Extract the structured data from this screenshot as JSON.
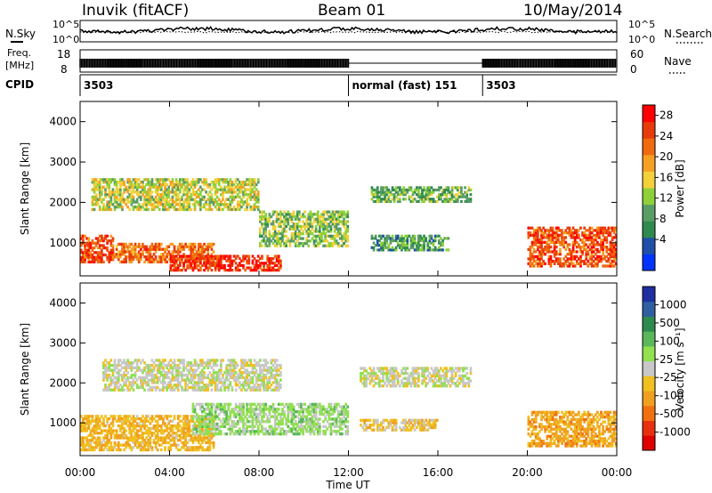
{
  "header": {
    "station": "Inuvik (fitACF)",
    "beam": "Beam 01",
    "date": "10/May/2014"
  },
  "top_panels": {
    "nsky_label": "N.Sky",
    "nsearch_label": "N.Search",
    "noise_ticks_left": [
      "10^5",
      "10^0"
    ],
    "noise_ticks_right": [
      "10^5",
      "10^0"
    ],
    "freq_label_line1": "Freq.",
    "freq_label_line2": "[MHz]",
    "freq_ticks": [
      "18",
      "8"
    ],
    "nave_label": "Nave",
    "nave_ticks": [
      "60",
      "0"
    ],
    "cpid_label": "CPID",
    "cpid_segments": [
      {
        "start_hour": 0,
        "end_hour": 12,
        "label": "3503"
      },
      {
        "start_hour": 12,
        "end_hour": 18,
        "label": "normal (fast) 151"
      },
      {
        "start_hour": 18,
        "end_hour": 24,
        "label": "3503"
      }
    ]
  },
  "colors": {
    "noise_trace": "#000000"
  },
  "chart_data": [
    {
      "type": "heatmap",
      "title": "",
      "ylabel": "Slant Range [km]",
      "xlabel": "",
      "x_range_hours": [
        0,
        24
      ],
      "ylim": [
        180,
        4500
      ],
      "y_ticks": [
        1000,
        2000,
        3000,
        4000
      ],
      "x_tick_hours": [
        0,
        4,
        8,
        12,
        16,
        20,
        24
      ],
      "x_tick_labels": [
        "00:00",
        "04:00",
        "08:00",
        "12:00",
        "16:00",
        "20:00",
        "00:00"
      ],
      "colorbar_label": "Power [dB]",
      "colorbar_ticks": [
        "4",
        "8",
        "12",
        "16",
        "20",
        "24",
        "28"
      ],
      "colorbar_colors": [
        "#0033ff",
        "#1f4fa8",
        "#2f8a4f",
        "#5a9c66",
        "#8fd03a",
        "#f2d13a",
        "#f6a023",
        "#f06a10",
        "#e83b0c",
        "#ff0000"
      ],
      "echo_regions": [
        {
          "t0": 0.0,
          "t1": 1.5,
          "r0": 500,
          "r1": 1200,
          "dB": 26
        },
        {
          "t0": 1.5,
          "t1": 6.0,
          "r0": 500,
          "r1": 1000,
          "dB": 24
        },
        {
          "t0": 4.0,
          "t1": 9.0,
          "r0": 300,
          "r1": 700,
          "dB": 28
        },
        {
          "t0": 0.5,
          "t1": 8.0,
          "r0": 1800,
          "r1": 2600,
          "dB": 16
        },
        {
          "t0": 8.0,
          "t1": 12.0,
          "r0": 900,
          "r1": 1800,
          "dB": 14
        },
        {
          "t0": 13.0,
          "t1": 17.5,
          "r0": 2000,
          "r1": 2400,
          "dB": 12
        },
        {
          "t0": 13.0,
          "t1": 16.5,
          "r0": 800,
          "r1": 1200,
          "dB": 10
        },
        {
          "t0": 20.0,
          "t1": 24.0,
          "r0": 400,
          "r1": 1400,
          "dB": 26
        }
      ]
    },
    {
      "type": "heatmap",
      "title": "",
      "ylabel": "Slant Range [km]",
      "xlabel": "Time UT",
      "x_range_hours": [
        0,
        24
      ],
      "ylim": [
        180,
        4500
      ],
      "y_ticks": [
        1000,
        2000,
        3000,
        4000
      ],
      "x_tick_hours": [
        0,
        4,
        8,
        12,
        16,
        20,
        24
      ],
      "x_tick_labels": [
        "00:00",
        "04:00",
        "08:00",
        "12:00",
        "16:00",
        "20:00",
        "00:00"
      ],
      "colorbar_label": "Velocity [m s⁻¹]",
      "colorbar_ticks": [
        "1000",
        "500",
        "100",
        "25",
        "-25",
        "-100",
        "-500",
        "-1000"
      ],
      "colorbar_colors": [
        "#1f2fa0",
        "#2f5fa0",
        "#2f8a4f",
        "#5ab85a",
        "#90e050",
        "#c8c8c8",
        "#f0c020",
        "#f0a020",
        "#f07010",
        "#e83010",
        "#e00000"
      ],
      "echo_regions": [
        {
          "t0": 0.0,
          "t1": 6.0,
          "r0": 300,
          "r1": 1200,
          "v": -300
        },
        {
          "t0": 5.0,
          "t1": 12.0,
          "r0": 700,
          "r1": 1500,
          "v": 200
        },
        {
          "t0": 1.0,
          "t1": 9.0,
          "r0": 1800,
          "r1": 2600,
          "v": 0
        },
        {
          "t0": 12.5,
          "t1": 17.5,
          "r0": 1900,
          "r1": 2400,
          "v": 0
        },
        {
          "t0": 12.5,
          "t1": 16.0,
          "r0": 800,
          "r1": 1100,
          "v": -200
        },
        {
          "t0": 20.0,
          "t1": 24.0,
          "r0": 400,
          "r1": 1300,
          "v": -400
        }
      ]
    }
  ]
}
